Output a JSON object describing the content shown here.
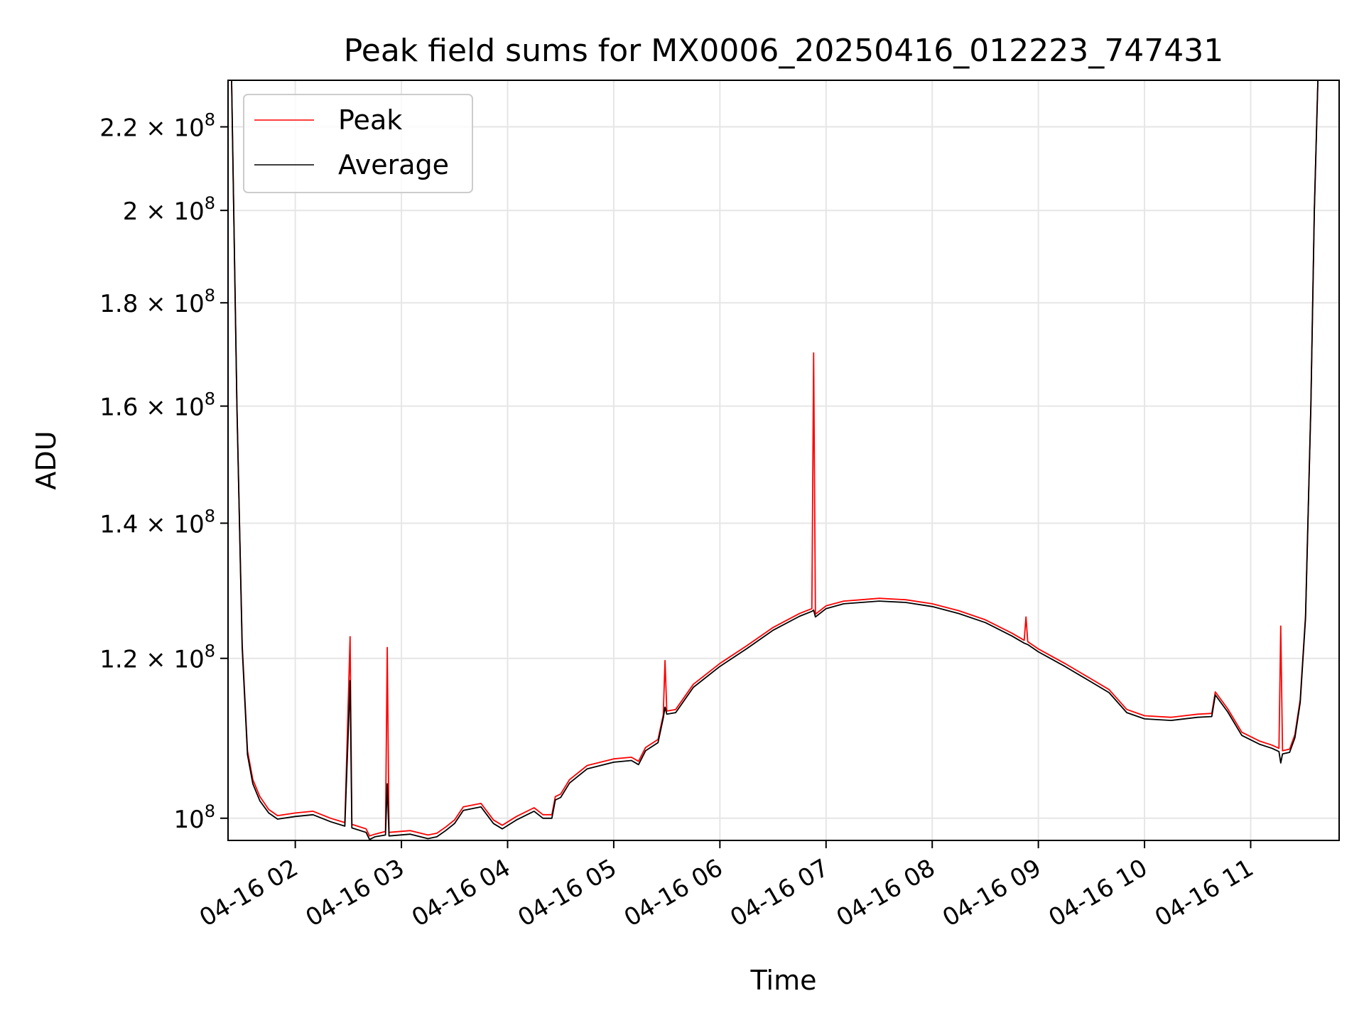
{
  "chart_data": {
    "type": "line",
    "title": "Peak field sums for MX0006_20250416_012223_747431",
    "xlabel": "Time",
    "ylabel": "ADU",
    "y_scale": "log",
    "ylim": [
      97500000,
      232000000
    ],
    "xlim": [
      "04-16 01:22",
      "04-16 11:50"
    ],
    "grid": true,
    "legend_position": "upper-left",
    "x_ticks": [
      {
        "value": "04-16 02:00",
        "label": "04-16 02"
      },
      {
        "value": "04-16 03:00",
        "label": "04-16 03"
      },
      {
        "value": "04-16 04:00",
        "label": "04-16 04"
      },
      {
        "value": "04-16 05:00",
        "label": "04-16 05"
      },
      {
        "value": "04-16 06:00",
        "label": "04-16 06"
      },
      {
        "value": "04-16 07:00",
        "label": "04-16 07"
      },
      {
        "value": "04-16 08:00",
        "label": "04-16 08"
      },
      {
        "value": "04-16 09:00",
        "label": "04-16 09"
      },
      {
        "value": "04-16 10:00",
        "label": "04-16 10"
      },
      {
        "value": "04-16 11:00",
        "label": "04-16 11"
      }
    ],
    "y_ticks": [
      {
        "value": 100000000,
        "mantissa": "",
        "exponent": "8"
      },
      {
        "value": 120000000,
        "mantissa": "1.2",
        "exponent": "8"
      },
      {
        "value": 140000000,
        "mantissa": "1.4",
        "exponent": "8"
      },
      {
        "value": 160000000,
        "mantissa": "1.6",
        "exponent": "8"
      },
      {
        "value": 180000000,
        "mantissa": "1.8",
        "exponent": "8"
      },
      {
        "value": 200000000,
        "mantissa": "2",
        "exponent": "8"
      },
      {
        "value": 220000000,
        "mantissa": "2.2",
        "exponent": "8"
      }
    ],
    "series": [
      {
        "name": "Peak",
        "color": "#ff0000",
        "points": [
          [
            "04-16 01:24",
            232000000
          ],
          [
            "04-16 01:27",
            160000000
          ],
          [
            "04-16 01:30",
            122000000
          ],
          [
            "04-16 01:33",
            108000000
          ],
          [
            "04-16 01:36",
            104500000
          ],
          [
            "04-16 01:40",
            102500000
          ],
          [
            "04-16 01:45",
            101000000
          ],
          [
            "04-16 01:50",
            100300000
          ],
          [
            "04-16 02:00",
            100600000
          ],
          [
            "04-16 02:10",
            100800000
          ],
          [
            "04-16 02:20",
            100000000
          ],
          [
            "04-16 02:28",
            99500000
          ],
          [
            "04-16 02:31",
            123000000
          ],
          [
            "04-16 02:32",
            99300000
          ],
          [
            "04-16 02:40",
            98800000
          ],
          [
            "04-16 02:42",
            98000000
          ],
          [
            "04-16 02:45",
            98200000
          ],
          [
            "04-16 02:51",
            98500000
          ],
          [
            "04-16 02:52",
            121500000
          ],
          [
            "04-16 02:53",
            98400000
          ],
          [
            "04-16 03:05",
            98600000
          ],
          [
            "04-16 03:15",
            98100000
          ],
          [
            "04-16 03:20",
            98300000
          ],
          [
            "04-16 03:25",
            99000000
          ],
          [
            "04-16 03:30",
            99800000
          ],
          [
            "04-16 03:35",
            101300000
          ],
          [
            "04-16 03:45",
            101700000
          ],
          [
            "04-16 03:52",
            99800000
          ],
          [
            "04-16 03:57",
            99200000
          ],
          [
            "04-16 04:05",
            100200000
          ],
          [
            "04-16 04:15",
            101200000
          ],
          [
            "04-16 04:20",
            100400000
          ],
          [
            "04-16 04:25",
            100400000
          ],
          [
            "04-16 04:27",
            102500000
          ],
          [
            "04-16 04:30",
            102800000
          ],
          [
            "04-16 04:35",
            104500000
          ],
          [
            "04-16 04:45",
            106200000
          ],
          [
            "04-16 05:00",
            107000000
          ],
          [
            "04-16 05:10",
            107200000
          ],
          [
            "04-16 05:14",
            106700000
          ],
          [
            "04-16 05:18",
            108400000
          ],
          [
            "04-16 05:25",
            109400000
          ],
          [
            "04-16 05:28",
            112500000
          ],
          [
            "04-16 05:29",
            119700000
          ],
          [
            "04-16 05:30",
            113000000
          ],
          [
            "04-16 05:35",
            113200000
          ],
          [
            "04-16 05:45",
            116500000
          ],
          [
            "04-16 06:00",
            119300000
          ],
          [
            "04-16 06:15",
            121700000
          ],
          [
            "04-16 06:30",
            124300000
          ],
          [
            "04-16 06:45",
            126300000
          ],
          [
            "04-16 06:52",
            127000000
          ],
          [
            "04-16 06:53",
            170000000
          ],
          [
            "04-16 06:54",
            126200000
          ],
          [
            "04-16 07:00",
            127400000
          ],
          [
            "04-16 07:10",
            128100000
          ],
          [
            "04-16 07:20",
            128300000
          ],
          [
            "04-16 07:30",
            128500000
          ],
          [
            "04-16 07:45",
            128300000
          ],
          [
            "04-16 08:00",
            127700000
          ],
          [
            "04-16 08:15",
            126700000
          ],
          [
            "04-16 08:30",
            125400000
          ],
          [
            "04-16 08:45",
            123500000
          ],
          [
            "04-16 08:52",
            122500000
          ],
          [
            "04-16 08:53",
            125800000
          ],
          [
            "04-16 08:54",
            122300000
          ],
          [
            "04-16 09:00",
            121300000
          ],
          [
            "04-16 09:15",
            119300000
          ],
          [
            "04-16 09:30",
            117200000
          ],
          [
            "04-16 09:40",
            115800000
          ],
          [
            "04-16 09:50",
            113200000
          ],
          [
            "04-16 10:00",
            112400000
          ],
          [
            "04-16 10:15",
            112200000
          ],
          [
            "04-16 10:30",
            112600000
          ],
          [
            "04-16 10:38",
            112700000
          ],
          [
            "04-16 10:40",
            115500000
          ],
          [
            "04-16 10:47",
            113300000
          ],
          [
            "04-16 10:55",
            110300000
          ],
          [
            "04-16 11:05",
            109200000
          ],
          [
            "04-16 11:12",
            108700000
          ],
          [
            "04-16 11:16",
            108300000
          ],
          [
            "04-16 11:17",
            124500000
          ],
          [
            "04-16 11:18",
            108000000
          ],
          [
            "04-16 11:22",
            108200000
          ],
          [
            "04-16 11:25",
            110000000
          ],
          [
            "04-16 11:28",
            114500000
          ],
          [
            "04-16 11:31",
            126000000
          ],
          [
            "04-16 11:34",
            160000000
          ],
          [
            "04-16 11:36",
            200000000
          ],
          [
            "04-16 11:38",
            232000000
          ]
        ]
      },
      {
        "name": "Average",
        "color": "#000000",
        "points": [
          [
            "04-16 01:24",
            232000000
          ],
          [
            "04-16 01:27",
            160000000
          ],
          [
            "04-16 01:30",
            121500000
          ],
          [
            "04-16 01:33",
            107500000
          ],
          [
            "04-16 01:36",
            104000000
          ],
          [
            "04-16 01:40",
            102000000
          ],
          [
            "04-16 01:45",
            100600000
          ],
          [
            "04-16 01:50",
            99900000
          ],
          [
            "04-16 02:00",
            100200000
          ],
          [
            "04-16 02:10",
            100400000
          ],
          [
            "04-16 02:20",
            99600000
          ],
          [
            "04-16 02:28",
            99100000
          ],
          [
            "04-16 02:31",
            117000000
          ],
          [
            "04-16 02:32",
            98900000
          ],
          [
            "04-16 02:40",
            98400000
          ],
          [
            "04-16 02:42",
            97600000
          ],
          [
            "04-16 02:45",
            97900000
          ],
          [
            "04-16 02:51",
            98100000
          ],
          [
            "04-16 02:52",
            104000000
          ],
          [
            "04-16 02:53",
            98000000
          ],
          [
            "04-16 03:05",
            98200000
          ],
          [
            "04-16 03:15",
            97700000
          ],
          [
            "04-16 03:20",
            97900000
          ],
          [
            "04-16 03:25",
            98600000
          ],
          [
            "04-16 03:30",
            99400000
          ],
          [
            "04-16 03:35",
            100900000
          ],
          [
            "04-16 03:45",
            101300000
          ],
          [
            "04-16 03:52",
            99400000
          ],
          [
            "04-16 03:57",
            98800000
          ],
          [
            "04-16 04:05",
            99800000
          ],
          [
            "04-16 04:15",
            100800000
          ],
          [
            "04-16 04:20",
            100000000
          ],
          [
            "04-16 04:25",
            100000000
          ],
          [
            "04-16 04:27",
            102100000
          ],
          [
            "04-16 04:30",
            102400000
          ],
          [
            "04-16 04:35",
            104100000
          ],
          [
            "04-16 04:45",
            105800000
          ],
          [
            "04-16 05:00",
            106600000
          ],
          [
            "04-16 05:10",
            106800000
          ],
          [
            "04-16 05:14",
            106300000
          ],
          [
            "04-16 05:18",
            108000000
          ],
          [
            "04-16 05:25",
            109000000
          ],
          [
            "04-16 05:28",
            112100000
          ],
          [
            "04-16 05:29",
            113500000
          ],
          [
            "04-16 05:30",
            112600000
          ],
          [
            "04-16 05:35",
            112800000
          ],
          [
            "04-16 05:45",
            116100000
          ],
          [
            "04-16 06:00",
            118900000
          ],
          [
            "04-16 06:15",
            121300000
          ],
          [
            "04-16 06:30",
            123900000
          ],
          [
            "04-16 06:45",
            125900000
          ],
          [
            "04-16 06:52",
            126600000
          ],
          [
            "04-16 06:53",
            126800000
          ],
          [
            "04-16 06:54",
            125800000
          ],
          [
            "04-16 07:00",
            127000000
          ],
          [
            "04-16 07:10",
            127700000
          ],
          [
            "04-16 07:20",
            127900000
          ],
          [
            "04-16 07:30",
            128100000
          ],
          [
            "04-16 07:45",
            127900000
          ],
          [
            "04-16 08:00",
            127300000
          ],
          [
            "04-16 08:15",
            126300000
          ],
          [
            "04-16 08:30",
            125000000
          ],
          [
            "04-16 08:45",
            123100000
          ],
          [
            "04-16 08:52",
            122100000
          ],
          [
            "04-16 08:53",
            122000000
          ],
          [
            "04-16 08:54",
            121900000
          ],
          [
            "04-16 09:00",
            120900000
          ],
          [
            "04-16 09:15",
            118900000
          ],
          [
            "04-16 09:30",
            116800000
          ],
          [
            "04-16 09:40",
            115400000
          ],
          [
            "04-16 09:50",
            112800000
          ],
          [
            "04-16 10:00",
            112000000
          ],
          [
            "04-16 10:15",
            111800000
          ],
          [
            "04-16 10:30",
            112200000
          ],
          [
            "04-16 10:38",
            112300000
          ],
          [
            "04-16 10:40",
            115100000
          ],
          [
            "04-16 10:47",
            112900000
          ],
          [
            "04-16 10:55",
            109900000
          ],
          [
            "04-16 11:05",
            108800000
          ],
          [
            "04-16 11:12",
            108300000
          ],
          [
            "04-16 11:16",
            107900000
          ],
          [
            "04-16 11:17",
            106500000
          ],
          [
            "04-16 11:18",
            107600000
          ],
          [
            "04-16 11:22",
            107800000
          ],
          [
            "04-16 11:25",
            109600000
          ],
          [
            "04-16 11:28",
            114100000
          ],
          [
            "04-16 11:31",
            125600000
          ],
          [
            "04-16 11:34",
            160000000
          ],
          [
            "04-16 11:36",
            200000000
          ],
          [
            "04-16 11:38",
            232000000
          ]
        ]
      }
    ]
  }
}
